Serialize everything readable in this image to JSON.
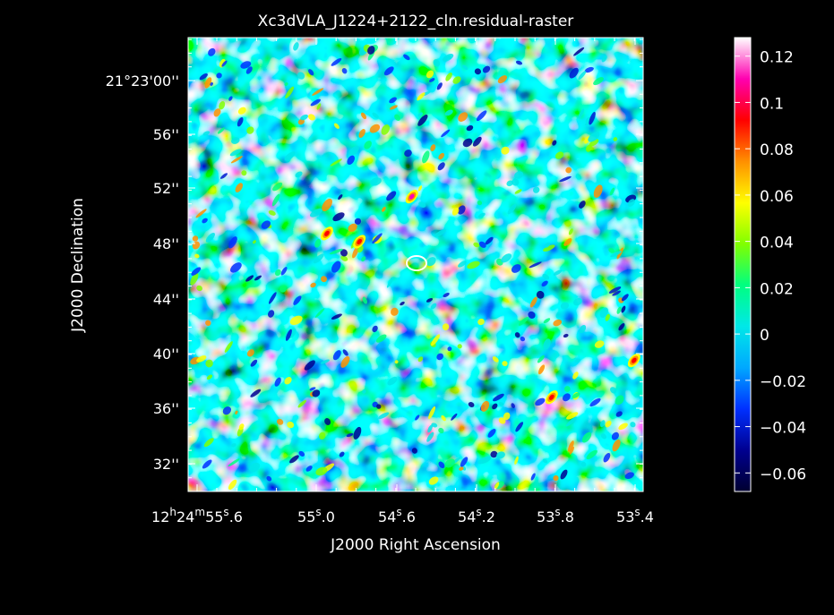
{
  "chart_data": {
    "type": "heatmap",
    "title": "Xc3dVLA_J1224+2122_cln.residual-raster",
    "xlabel": "J2000 Right Ascension",
    "ylabel": "J2000 Declination",
    "x_ticks": [
      {
        "main": "12",
        "s1": "h",
        "m2": "24",
        "s2": "m",
        "m3": "55",
        "s3": "s",
        "tail": ".6"
      },
      {
        "main": "55",
        "s1": "s",
        "tail": ".0"
      },
      {
        "main": "54",
        "s1": "s",
        "tail": ".6"
      },
      {
        "main": "54",
        "s1": "s",
        "tail": ".2"
      },
      {
        "main": "53",
        "s1": "s",
        "tail": ".8"
      },
      {
        "main": "53",
        "s1": "s",
        "tail": ".4"
      }
    ],
    "y_ticks": [
      "21°23'00''",
      "56''",
      "52''",
      "48''",
      "44''",
      "40''",
      "36''",
      "32''"
    ],
    "colorbar_ticks": [
      "0.12",
      "0.1",
      "0.08",
      "0.06",
      "0.04",
      "0.02",
      "0",
      "−0.02",
      "−0.04",
      "−0.06"
    ],
    "colorbar_values": [
      0.12,
      0.1,
      0.08,
      0.06,
      0.04,
      0.02,
      0,
      -0.02,
      -0.04,
      -0.06
    ],
    "colorbar_range": [
      -0.068,
      0.128
    ],
    "colormap": [
      "#000030",
      "#000090",
      "#0030ff",
      "#00a8ff",
      "#00e8e8",
      "#00ff80",
      "#80ff00",
      "#ffff00",
      "#ff9000",
      "#ff0000",
      "#ff00b0",
      "#ffffff"
    ],
    "hotspots": [
      {
        "ra": "54.95s",
        "dec": "48.2''",
        "value": 0.08
      },
      {
        "ra": "54.74s",
        "dec": "51.5''",
        "value": 0.1
      },
      {
        "ra": "54.18s",
        "dec": "36.8''",
        "value": 0.08
      },
      {
        "ra": "53.85s",
        "dec": "39.5''",
        "value": 0.07
      },
      {
        "ra": "55.08s",
        "dec": "48.8''",
        "value": 0.06
      }
    ],
    "grid": false,
    "legend": "right"
  }
}
